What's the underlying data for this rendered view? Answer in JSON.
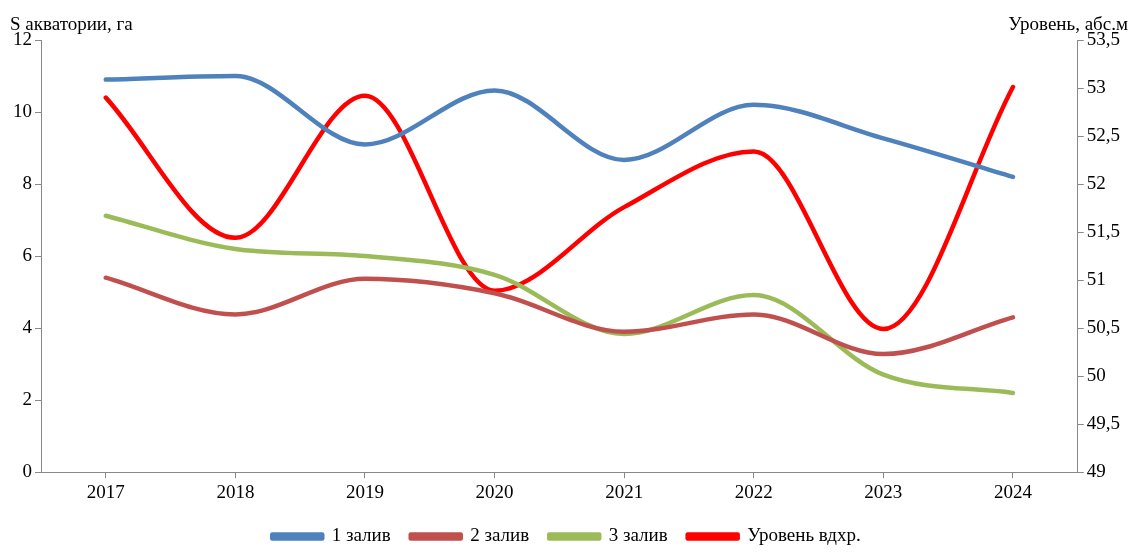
{
  "chart_data": {
    "type": "line",
    "ylabel": "S акватории, га",
    "y2label": "Уровень, абс.м",
    "categories": [
      "2017",
      "2018",
      "2019",
      "2020",
      "2021",
      "2022",
      "2023",
      "2024"
    ],
    "series": [
      {
        "name": "1 залив",
        "color": "#4f81bd",
        "values": [
          10.9,
          11.0,
          9.1,
          10.6,
          8.67,
          10.2,
          9.27,
          8.2
        ]
      },
      {
        "name": "2 залив",
        "color": "#c0504d",
        "values": [
          5.4,
          4.38,
          5.37,
          4.97,
          3.9,
          4.38,
          3.28,
          4.3
        ]
      },
      {
        "name": "3 залив",
        "color": "#9bbb59",
        "values": [
          7.12,
          6.2,
          6.0,
          5.48,
          3.84,
          4.92,
          2.71,
          2.2
        ]
      },
      {
        "name": "Уровень вдхр.",
        "color": "#ff0000",
        "axis": "y2",
        "values": [
          52.9,
          51.44,
          52.92,
          50.89,
          51.76,
          52.34,
          50.49,
          53.01
        ]
      }
    ],
    "ylim": [
      0,
      12
    ],
    "yticks": [
      0,
      2,
      4,
      6,
      8,
      10,
      12
    ],
    "y2lim": [
      49,
      53.5
    ],
    "y2ticks": [
      49,
      {
        "value": 49.5,
        "label": "49,5"
      },
      50,
      {
        "value": 50.5,
        "label": "50,5"
      },
      51,
      {
        "value": 51.5,
        "label": "51,5"
      },
      52,
      {
        "value": 52.5,
        "label": "52,5"
      },
      53,
      {
        "value": 53.5,
        "label": "53,5"
      }
    ],
    "grid": false,
    "legend": "bottom",
    "marker": "none",
    "line_style": "solid"
  }
}
